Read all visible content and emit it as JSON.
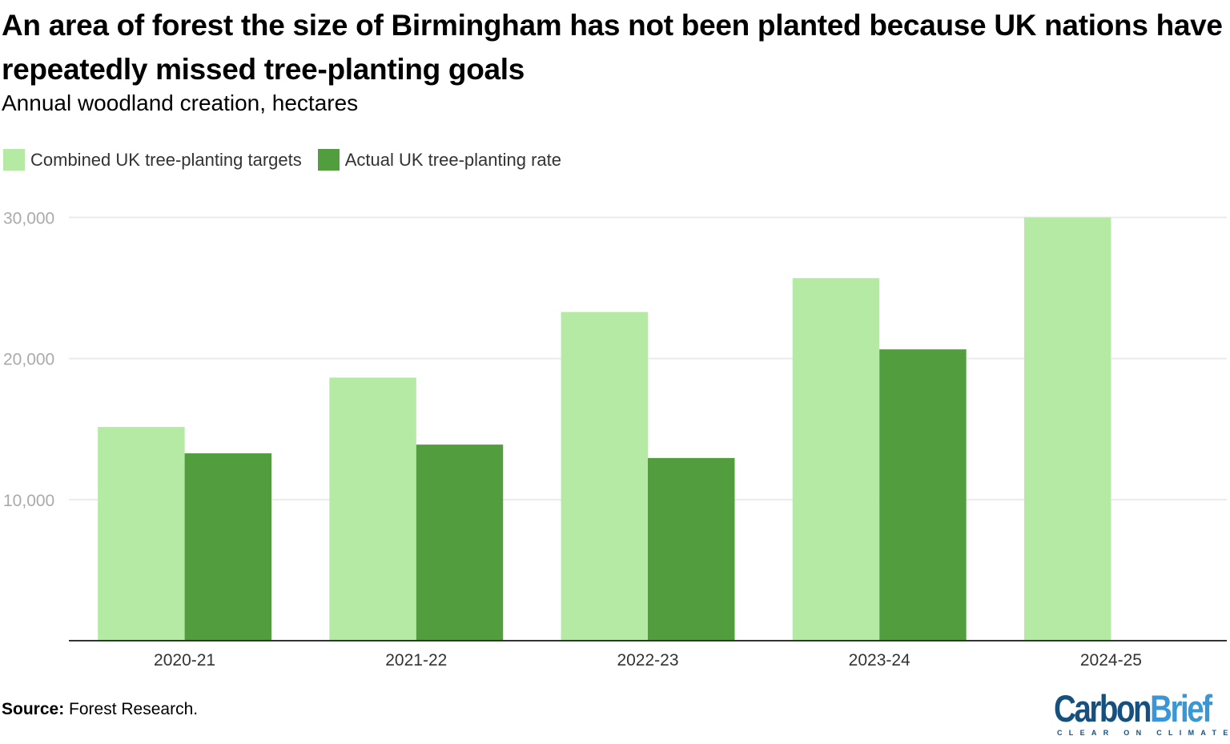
{
  "chart_data": {
    "type": "bar",
    "title": "An area of forest the size of Birmingham has not been planted because UK nations have repeatedly missed tree-planting goals",
    "subtitle": "Annual woodland creation, hectares",
    "categories": [
      "2020-21",
      "2021-22",
      "2022-23",
      "2023-24",
      "2024-25"
    ],
    "series": [
      {
        "name": "Combined UK tree-planting targets",
        "color": "#b5eaa5",
        "values": [
          15150,
          18650,
          23300,
          25700,
          30000
        ]
      },
      {
        "name": "Actual UK tree-planting rate",
        "color": "#529e3e",
        "values": [
          13280,
          13900,
          12950,
          20650,
          null
        ]
      }
    ],
    "ylim": [
      0,
      30000
    ],
    "yticks": [
      10000,
      20000,
      30000
    ],
    "ytick_labels": [
      "10,000",
      "20,000",
      "30,000"
    ],
    "grid": true,
    "legend_position": "top-left",
    "xlabel": "",
    "ylabel": ""
  },
  "source": {
    "label": "Source:",
    "text": " Forest Research."
  },
  "logo": {
    "part1": "Carbon",
    "part2": "Brief",
    "tagline": "CLEAR ON CLIMATE"
  }
}
